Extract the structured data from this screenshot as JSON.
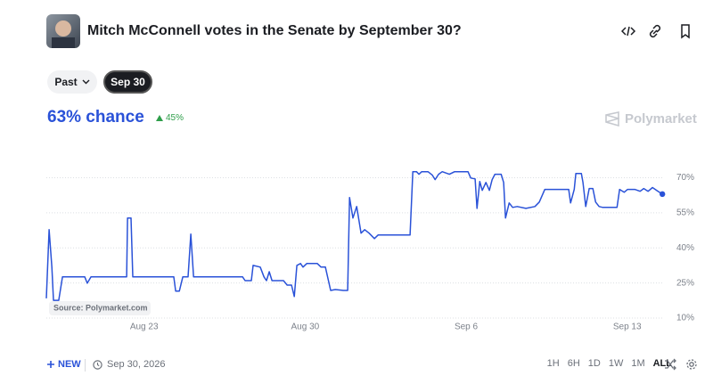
{
  "header": {
    "title": "Mitch McConnell votes in the Senate by September 30?"
  },
  "controls": {
    "past": "Past",
    "date": "Sep 30"
  },
  "headline": {
    "chance": "63% chance",
    "change": "45%"
  },
  "brand": "Polymarket",
  "chart_data": {
    "type": "line",
    "source": "Source: Polymarket.com",
    "color": "#2a52d8",
    "x": [
      18.75,
      18.87,
      18.99,
      19.06,
      19.29,
      19.45,
      20.42,
      20.53,
      20.69,
      22.24,
      22.28,
      22.43,
      22.51,
      24.29,
      24.37,
      24.53,
      24.68,
      24.91,
      25.03,
      25.15,
      27.28,
      27.39,
      27.66,
      27.74,
      28.05,
      28.21,
      28.32,
      28.44,
      28.56,
      29.06,
      29.22,
      29.41,
      29.53,
      29.64,
      29.8,
      29.91,
      30.07,
      30.53,
      30.69,
      30.88,
      31.11,
      31.31,
      31.66,
      31.85,
      31.93,
      32.08,
      32.24,
      32.43,
      32.59,
      32.78,
      33.01,
      33.17,
      34.56,
      34.68,
      34.84,
      34.95,
      35.07,
      35.34,
      35.53,
      35.65,
      35.8,
      35.96,
      36.27,
      36.5,
      37.08,
      37.2,
      37.39,
      37.47,
      37.59,
      37.7,
      37.86,
      38.01,
      38.13,
      38.25,
      38.52,
      38.63,
      38.71,
      38.87,
      39.02,
      39.22,
      39.6,
      39.99,
      40.18,
      40.42,
      41.46,
      41.54,
      41.7,
      41.77,
      42.01,
      42.08,
      42.2,
      42.35,
      42.51,
      42.63,
      42.78,
      42.94,
      43.56,
      43.67,
      43.87,
      44.02,
      44.33,
      44.56,
      44.72,
      44.91,
      45.1,
      45.34,
      45.53
    ],
    "values": [
      18.4,
      47.8,
      31.8,
      17.6,
      17.6,
      27.6,
      27.6,
      24.9,
      27.6,
      27.6,
      52.8,
      52.8,
      27.6,
      27.6,
      21.5,
      21.5,
      27.6,
      27.6,
      45.9,
      27.6,
      27.6,
      26.0,
      26.0,
      32.5,
      31.8,
      27.6,
      26.0,
      29.8,
      26.0,
      26.0,
      24.1,
      24.1,
      19.2,
      32.5,
      33.3,
      31.8,
      33.3,
      33.3,
      31.8,
      31.8,
      21.8,
      22.2,
      21.8,
      21.8,
      61.5,
      52.8,
      57.7,
      46.3,
      47.8,
      46.3,
      44.0,
      45.5,
      45.5,
      72.6,
      72.6,
      71.5,
      72.6,
      72.6,
      71.1,
      69.2,
      71.5,
      72.6,
      71.5,
      72.6,
      72.6,
      69.9,
      69.5,
      56.9,
      68.4,
      64.6,
      68.0,
      64.6,
      69.2,
      71.5,
      71.5,
      68.0,
      52.8,
      59.2,
      57.3,
      57.7,
      56.9,
      57.7,
      59.6,
      65.0,
      65.0,
      59.2,
      65.0,
      71.8,
      71.8,
      68.0,
      57.7,
      65.4,
      65.4,
      59.6,
      57.7,
      57.3,
      57.3,
      65.0,
      63.8,
      65.0,
      65.0,
      64.2,
      65.4,
      64.2,
      65.8,
      64.2,
      63
    ],
    "xlim": [
      18.75,
      45.6
    ],
    "ylim": [
      10,
      74
    ],
    "xticks": [
      {
        "value": 23,
        "label": "Aug 23"
      },
      {
        "value": 30,
        "label": "Aug 30"
      },
      {
        "value": 37,
        "label": "Sep 6"
      },
      {
        "value": 44,
        "label": "Sep 13"
      }
    ],
    "yticks": [
      {
        "value": 10,
        "label": "10%"
      },
      {
        "value": 25,
        "label": "25%"
      },
      {
        "value": 40,
        "label": "40%"
      },
      {
        "value": 55,
        "label": "55%"
      },
      {
        "value": 70,
        "label": "70%"
      }
    ],
    "grid": true
  },
  "footer": {
    "new": "NEW",
    "end_date": "Sep 30, 2026",
    "ranges": [
      "1H",
      "6H",
      "1D",
      "1W",
      "1M",
      "ALL"
    ]
  }
}
